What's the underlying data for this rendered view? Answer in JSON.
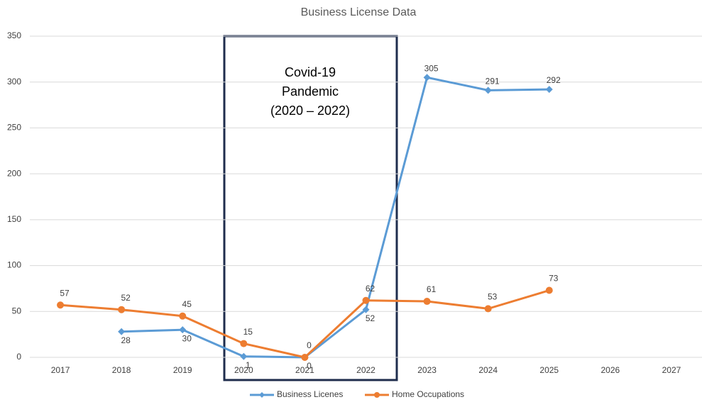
{
  "chart_data": {
    "type": "line",
    "title": "Business License Data",
    "categories": [
      "2017",
      "2018",
      "2019",
      "2020",
      "2021",
      "2022",
      "2023",
      "2024",
      "2025",
      "2026",
      "2027"
    ],
    "series": [
      {
        "name": "Business Licenes",
        "color": "#5b9bd5",
        "values": [
          null,
          28,
          30,
          1,
          0,
          52,
          305,
          291,
          292,
          null,
          null
        ]
      },
      {
        "name": "Home Occupations",
        "color": "#ed7d31",
        "values": [
          57,
          52,
          45,
          15,
          0,
          62,
          61,
          53,
          73,
          null,
          null
        ]
      }
    ],
    "annotation": [
      "Covid-19",
      "Pandemic",
      "(2020 – 2022)"
    ],
    "ylim": [
      0,
      350
    ],
    "yticks": [
      0,
      50,
      100,
      150,
      200,
      250,
      300,
      350
    ],
    "grid": true,
    "legend": "bottom"
  }
}
